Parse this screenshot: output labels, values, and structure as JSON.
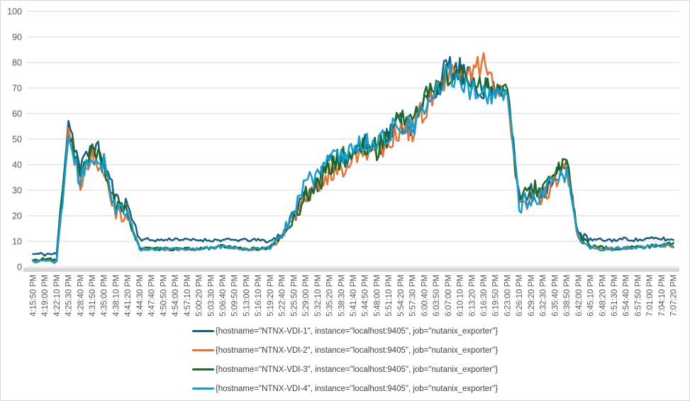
{
  "chart_data": {
    "type": "line",
    "title": "",
    "xlabel": "",
    "ylabel": "",
    "ylim": [
      0,
      100
    ],
    "y_ticks": [
      0,
      10,
      20,
      30,
      40,
      50,
      60,
      70,
      80,
      90,
      100
    ],
    "grid": "horizontal",
    "legend_position": "bottom",
    "axis_label_color": "#595959",
    "gridline_color": "#d9d9d9",
    "axis_band_color": "#d6d6d6",
    "x_labels": [
      "4:15:50 PM",
      "4:19:00 PM",
      "4:22:10 PM",
      "4:25:30 PM",
      "4:28:40 PM",
      "4:31:50 PM",
      "4:35:00 PM",
      "4:38:10 PM",
      "4:41:20 PM",
      "4:44:30 PM",
      "4:47:40 PM",
      "4:50:50 PM",
      "4:54:00 PM",
      "4:57:10 PM",
      "5:00:20 PM",
      "5:03:30 PM",
      "5:06:40 PM",
      "5:09:50 PM",
      "5:13:00 PM",
      "5:16:10 PM",
      "5:19:20 PM",
      "5:22:40 PM",
      "5:25:50 PM",
      "5:29:00 PM",
      "5:32:10 PM",
      "5:35:20 PM",
      "5:38:30 PM",
      "5:41:40 PM",
      "5:44:50 PM",
      "5:48:00 PM",
      "5:51:10 PM",
      "5:54:20 PM",
      "5:57:30 PM",
      "6:00:40 PM",
      "6:03:50 PM",
      "6:07:00 PM",
      "6:10:10 PM",
      "6:13:20 PM",
      "6:16:30 PM",
      "6:19:50 PM",
      "6:23:00 PM",
      "6:26:10 PM",
      "6:29:20 PM",
      "6:32:30 PM",
      "6:35:40 PM",
      "6:38:50 PM",
      "6:42:00 PM",
      "6:45:10 PM",
      "6:48:20 PM",
      "6:51:30 PM",
      "6:54:40 PM",
      "6:57:50 PM",
      "7:01:00 PM",
      "7:04:10 PM",
      "7:07:20 PM"
    ],
    "series": [
      {
        "name": "{hostname=\"NTNX-VDI-1\", instance=\"localhost:9405\", job=\"nutanix_exporter\"}",
        "color": "#156082",
        "seed": 11,
        "values": [
          5,
          5,
          5,
          58,
          38,
          48,
          42,
          26,
          24,
          11,
          10.5,
          10.5,
          11,
          10.5,
          10.5,
          10.5,
          10.5,
          10.5,
          10.5,
          10.5,
          10,
          13,
          20,
          29,
          33,
          40,
          42,
          45,
          48,
          47,
          52,
          57,
          55,
          64,
          70,
          78,
          76,
          72,
          70,
          69,
          70,
          26,
          29,
          30,
          36,
          40,
          13,
          10.5,
          10.5,
          10.5,
          11,
          10.5,
          11,
          11,
          10.5
        ]
      },
      {
        "name": "{hostname=\"NTNX-VDI-2\", instance=\"localhost:9405\", job=\"nutanix_exporter\"}",
        "color": "#E97132",
        "seed": 22,
        "values": [
          2.5,
          3,
          2.5,
          52,
          34,
          44,
          39,
          22,
          20,
          7,
          7,
          7,
          7,
          7,
          7,
          7.5,
          8,
          7.5,
          7,
          7,
          7.5,
          12,
          19,
          27,
          30,
          37,
          38,
          44,
          46,
          45,
          50,
          53,
          54,
          62,
          67,
          74,
          73,
          76,
          80,
          70,
          68,
          24,
          27,
          28,
          34,
          38,
          11,
          8,
          7,
          7,
          7.5,
          7.5,
          8,
          8.5,
          8
        ]
      },
      {
        "name": "{hostname=\"NTNX-VDI-3\", instance=\"localhost:9405\", job=\"nutanix_exporter\"}",
        "color": "#196B24",
        "seed": 33,
        "values": [
          2.5,
          3,
          2.5,
          54,
          35,
          45,
          40,
          23,
          21,
          7.5,
          7,
          7,
          7,
          7,
          7,
          7.5,
          8,
          7.5,
          7,
          7,
          7.5,
          12,
          19,
          28,
          32,
          39,
          43,
          45,
          47,
          46,
          52,
          60,
          57,
          66,
          71,
          75,
          74,
          73,
          71,
          70,
          70,
          25,
          30,
          31,
          36,
          41,
          12,
          8,
          7.5,
          7,
          7.5,
          7.5,
          8,
          9,
          9
        ]
      },
      {
        "name": "{hostname=\"NTNX-VDI-4\", instance=\"localhost:9405\", job=\"nutanix_exporter\"}",
        "color": "#0F9ED5",
        "seed": 44,
        "values": [
          2,
          2.5,
          2,
          51,
          33,
          43,
          41,
          22,
          20,
          7,
          7,
          7,
          7,
          7,
          7,
          7.5,
          8,
          7.5,
          7,
          7,
          7.5,
          12,
          22,
          34,
          36,
          42,
          44,
          46,
          49,
          48,
          53,
          55,
          54,
          61,
          68,
          76,
          74,
          70,
          68,
          66,
          69,
          24,
          26,
          27,
          34,
          37,
          11,
          7.5,
          7,
          7,
          7.5,
          7.5,
          8,
          8.5,
          8
        ]
      }
    ],
    "noise_amp": [
      0.5,
      0.8,
      0.6,
      4,
      4,
      4,
      4.5,
      3.5,
      3.5,
      0.8,
      0.6,
      0.6,
      0.6,
      0.6,
      0.6,
      0.7,
      0.7,
      0.6,
      0.6,
      0.6,
      0.8,
      2,
      3,
      4,
      4,
      4,
      4.5,
      4,
      4,
      4.5,
      4.5,
      5,
      5,
      5,
      5,
      6,
      6,
      5.5,
      5,
      3.5,
      2.5,
      3.5,
      4,
      4,
      4,
      3.5,
      2,
      0.8,
      0.7,
      0.7,
      0.7,
      0.7,
      0.7,
      0.8,
      0.7
    ],
    "upsample": 6
  }
}
